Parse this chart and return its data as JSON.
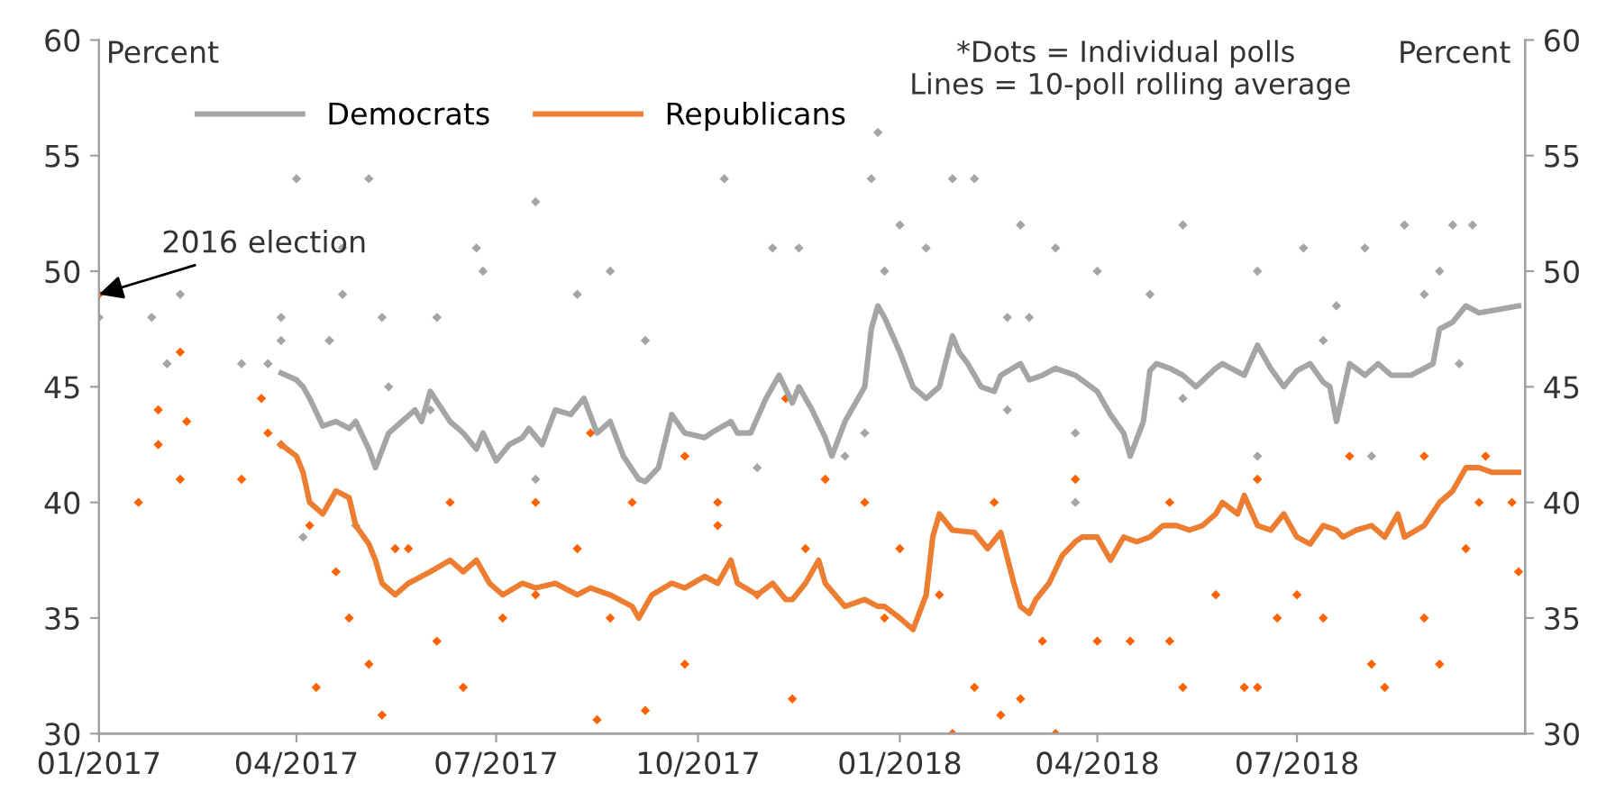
{
  "chart_data": {
    "type": "line",
    "ylabel": "Percent",
    "y2label": "Percent",
    "annotations": [
      "*Dots = Individual polls\n Lines = 10-poll rolling average",
      {
        "text": "2016 election",
        "x": "2017-01-01",
        "y": 49
      }
    ],
    "xlim": [
      "2017-01-01",
      "2018-10-13"
    ],
    "xticks": [
      {
        "value": "2017-01-01",
        "label": "01/2017"
      },
      {
        "value": "2017-04-01",
        "label": "04/2017"
      },
      {
        "value": "2017-07-01",
        "label": "07/2017"
      },
      {
        "value": "2017-10-01",
        "label": "10/2017"
      },
      {
        "value": "2018-01-01",
        "label": "01/2018"
      },
      {
        "value": "2018-04-01",
        "label": "04/2018"
      },
      {
        "value": "2018-07-01",
        "label": "07/2018"
      }
    ],
    "ylim": [
      30,
      60
    ],
    "yticks": [
      30,
      35,
      40,
      45,
      50,
      55,
      60
    ],
    "y2lim": [
      30,
      60
    ],
    "y2ticks": [
      30,
      35,
      40,
      45,
      50,
      55,
      60
    ],
    "legend": "top left",
    "line_style": "solid",
    "series": [
      {
        "name": "Democrats",
        "color": "#a5a5a5",
        "x": [
          "2017-03-25",
          "2017-04-01",
          "2017-04-04",
          "2017-04-07",
          "2017-04-13",
          "2017-04-19",
          "2017-04-25",
          "2017-04-28",
          "2017-05-04",
          "2017-05-07",
          "2017-05-13",
          "2017-05-19",
          "2017-05-25",
          "2017-05-28",
          "2017-06-01",
          "2017-06-10",
          "2017-06-16",
          "2017-06-22",
          "2017-06-25",
          "2017-07-01",
          "2017-07-07",
          "2017-07-13",
          "2017-07-16",
          "2017-07-22",
          "2017-07-28",
          "2017-08-04",
          "2017-08-10",
          "2017-08-16",
          "2017-08-22",
          "2017-08-28",
          "2017-09-04",
          "2017-09-07",
          "2017-09-13",
          "2017-09-19",
          "2017-09-25",
          "2017-10-04",
          "2017-10-07",
          "2017-10-16",
          "2017-10-19",
          "2017-10-25",
          "2017-11-01",
          "2017-11-07",
          "2017-11-13",
          "2017-11-16",
          "2017-11-22",
          "2017-11-28",
          "2017-12-01",
          "2017-12-07",
          "2017-12-13",
          "2017-12-16",
          "2017-12-19",
          "2017-12-22",
          "2017-12-25",
          "2018-01-01",
          "2018-01-07",
          "2018-01-13",
          "2018-01-19",
          "2018-01-25",
          "2018-01-28",
          "2018-02-01",
          "2018-02-07",
          "2018-02-13",
          "2018-02-16",
          "2018-02-25",
          "2018-03-01",
          "2018-03-07",
          "2018-03-13",
          "2018-03-22",
          "2018-04-01",
          "2018-04-07",
          "2018-04-13",
          "2018-04-16",
          "2018-04-22",
          "2018-04-25",
          "2018-04-28",
          "2018-05-04",
          "2018-05-10",
          "2018-05-16",
          "2018-05-25",
          "2018-05-28",
          "2018-06-07",
          "2018-06-13",
          "2018-06-19",
          "2018-06-25",
          "2018-07-01",
          "2018-07-07",
          "2018-07-13",
          "2018-07-16",
          "2018-07-19",
          "2018-07-25",
          "2018-08-01",
          "2018-08-07",
          "2018-08-13",
          "2018-08-22",
          "2018-09-01",
          "2018-09-04",
          "2018-09-10",
          "2018-09-16",
          "2018-09-22",
          "2018-09-28",
          "2018-10-10"
        ],
        "values": [
          45.6,
          45.3,
          45.0,
          44.5,
          43.3,
          43.5,
          43.2,
          43.5,
          42.3,
          41.5,
          43.0,
          43.5,
          44.0,
          43.5,
          44.8,
          43.5,
          43.0,
          42.3,
          43.0,
          41.8,
          42.5,
          42.8,
          43.2,
          42.5,
          44.0,
          43.8,
          44.5,
          43.0,
          43.5,
          42.0,
          41.0,
          40.9,
          41.5,
          43.8,
          43.0,
          42.8,
          43.0,
          43.5,
          43.0,
          43.0,
          44.5,
          45.5,
          44.3,
          45.0,
          44.0,
          42.8,
          42.0,
          43.5,
          44.5,
          45.0,
          47.5,
          48.5,
          48.0,
          46.5,
          45.0,
          44.5,
          45.0,
          47.2,
          46.5,
          46.0,
          45.0,
          44.8,
          45.5,
          46.0,
          45.3,
          45.5,
          45.8,
          45.5,
          44.8,
          43.8,
          43.0,
          42.0,
          43.5,
          45.7,
          46.0,
          45.8,
          45.5,
          45.0,
          45.8,
          46.0,
          45.5,
          46.8,
          45.8,
          45.0,
          45.7,
          46.0,
          45.2,
          45.0,
          43.5,
          46.0,
          45.5,
          46.0,
          45.5,
          45.5,
          46.0,
          47.5,
          47.8,
          48.5,
          48.2,
          48.3,
          48.5
        ]
      },
      {
        "name": "Republicans",
        "color": "#ed7d31",
        "x": [
          "2017-03-25",
          "2017-04-01",
          "2017-04-04",
          "2017-04-07",
          "2017-04-13",
          "2017-04-19",
          "2017-04-25",
          "2017-04-28",
          "2017-05-04",
          "2017-05-07",
          "2017-05-10",
          "2017-05-16",
          "2017-05-22",
          "2017-06-01",
          "2017-06-10",
          "2017-06-16",
          "2017-06-22",
          "2017-06-28",
          "2017-07-04",
          "2017-07-13",
          "2017-07-19",
          "2017-07-28",
          "2017-08-07",
          "2017-08-13",
          "2017-08-22",
          "2017-09-01",
          "2017-09-04",
          "2017-09-10",
          "2017-09-19",
          "2017-09-25",
          "2017-10-04",
          "2017-10-10",
          "2017-10-16",
          "2017-10-19",
          "2017-10-28",
          "2017-11-04",
          "2017-11-10",
          "2017-11-13",
          "2017-11-19",
          "2017-11-25",
          "2017-11-28",
          "2017-12-07",
          "2017-12-16",
          "2017-12-22",
          "2017-12-25",
          "2018-01-01",
          "2018-01-07",
          "2018-01-13",
          "2018-01-16",
          "2018-01-19",
          "2018-01-25",
          "2018-02-04",
          "2018-02-10",
          "2018-02-16",
          "2018-02-22",
          "2018-02-25",
          "2018-03-01",
          "2018-03-04",
          "2018-03-10",
          "2018-03-16",
          "2018-03-22",
          "2018-03-25",
          "2018-04-01",
          "2018-04-07",
          "2018-04-13",
          "2018-04-19",
          "2018-04-25",
          "2018-05-01",
          "2018-05-07",
          "2018-05-13",
          "2018-05-19",
          "2018-05-25",
          "2018-05-28",
          "2018-06-04",
          "2018-06-07",
          "2018-06-13",
          "2018-06-19",
          "2018-06-25",
          "2018-07-01",
          "2018-07-07",
          "2018-07-13",
          "2018-07-19",
          "2018-07-22",
          "2018-07-28",
          "2018-08-04",
          "2018-08-10",
          "2018-08-16",
          "2018-08-19",
          "2018-08-28",
          "2018-09-04",
          "2018-09-10",
          "2018-09-16",
          "2018-09-22",
          "2018-09-28",
          "2018-10-10"
        ],
        "values": [
          42.5,
          42.0,
          41.3,
          40.0,
          39.5,
          40.5,
          40.2,
          39.0,
          38.2,
          37.5,
          36.5,
          36.0,
          36.5,
          37.0,
          37.5,
          37.0,
          37.5,
          36.5,
          36.0,
          36.5,
          36.3,
          36.5,
          36.0,
          36.3,
          36.0,
          35.5,
          35.0,
          36.0,
          36.5,
          36.3,
          36.8,
          36.5,
          37.5,
          36.5,
          36.0,
          36.5,
          35.8,
          35.8,
          36.5,
          37.5,
          36.5,
          35.5,
          35.8,
          35.5,
          35.5,
          35.0,
          34.5,
          36.0,
          38.5,
          39.5,
          38.8,
          38.7,
          38.0,
          38.7,
          36.5,
          35.5,
          35.2,
          35.8,
          36.5,
          37.7,
          38.3,
          38.5,
          38.5,
          37.5,
          38.5,
          38.3,
          38.5,
          39.0,
          39.0,
          38.8,
          39.0,
          39.5,
          40.0,
          39.5,
          40.3,
          39.0,
          38.8,
          39.5,
          38.5,
          38.2,
          39.0,
          38.8,
          38.5,
          38.8,
          39.0,
          38.5,
          39.5,
          38.5,
          39.0,
          40.0,
          40.5,
          41.5,
          41.5,
          41.3,
          41.3
        ]
      },
      {
        "type": "scatter",
        "marker": "diamond",
        "color": "#a5a5a5",
        "x": [
          "2017-01-01",
          "2017-01-25",
          "2017-02-07",
          "2017-02-01",
          "2017-03-07",
          "2017-03-19",
          "2017-03-25",
          "2017-03-25",
          "2017-04-01",
          "2017-05-04",
          "2017-04-16",
          "2017-04-16",
          "2017-04-22",
          "2017-04-22",
          "2017-05-10",
          "2017-05-13",
          "2017-06-22",
          "2017-06-25",
          "2017-07-19",
          "2017-08-07",
          "2017-08-22",
          "2017-10-13",
          "2017-11-04",
          "2017-11-16",
          "2017-12-22",
          "2017-12-19",
          "2017-12-25",
          "2018-01-01",
          "2018-01-13",
          "2018-01-25",
          "2018-02-04",
          "2018-02-25",
          "2018-03-01",
          "2018-03-13",
          "2018-04-01",
          "2018-05-10",
          "2018-06-13",
          "2018-07-04",
          "2018-08-01",
          "2018-08-19",
          "2018-09-10",
          "2018-09-19",
          "2018-09-04",
          "2018-08-28",
          "2018-09-13",
          "2018-07-19",
          "2018-07-13",
          "2018-05-10",
          "2018-03-22",
          "2018-02-19",
          "2017-12-07",
          "2017-10-28",
          "2017-07-19",
          "2017-04-28",
          "2017-04-04",
          "2018-03-22",
          "2018-06-13",
          "2018-08-04",
          "2018-04-25",
          "2018-02-19",
          "2017-12-16",
          "2017-09-07",
          "2017-06-01",
          "2017-06-04"
        ],
        "values": [
          48,
          48,
          49,
          46,
          46,
          46,
          48,
          47,
          54,
          54,
          47,
          47,
          49,
          51,
          48,
          45,
          51,
          50,
          53,
          49,
          50,
          54,
          51,
          51,
          56,
          54,
          50,
          52,
          51,
          54,
          54,
          52,
          48,
          51,
          50,
          52,
          50,
          51,
          51,
          52,
          52,
          52,
          50,
          49,
          46,
          48.5,
          47,
          44.5,
          43,
          44,
          42,
          41.5,
          41,
          39,
          38.5,
          40,
          42,
          42,
          49,
          48,
          43,
          47,
          44,
          48
        ]
      },
      {
        "type": "scatter",
        "marker": "diamond",
        "color": "#ff6200",
        "x": [
          "2017-01-01",
          "2017-01-19",
          "2017-01-28",
          "2017-01-28",
          "2017-02-07",
          "2017-02-07",
          "2017-02-10",
          "2017-03-07",
          "2017-03-19",
          "2017-03-16",
          "2017-03-25",
          "2017-04-10",
          "2017-04-07",
          "2017-04-19",
          "2017-04-25",
          "2017-05-04",
          "2017-05-10",
          "2017-05-16",
          "2017-05-22",
          "2017-06-04",
          "2017-06-16",
          "2017-07-04",
          "2017-07-19",
          "2017-08-07",
          "2017-08-16",
          "2017-08-22",
          "2017-09-07",
          "2017-09-25",
          "2017-10-10",
          "2017-10-28",
          "2017-11-13",
          "2017-11-19",
          "2017-11-28",
          "2017-12-25",
          "2018-01-01",
          "2018-01-19",
          "2018-01-25",
          "2018-02-04",
          "2018-02-16",
          "2018-02-25",
          "2018-03-07",
          "2018-03-13",
          "2018-04-01",
          "2018-04-16",
          "2018-05-04",
          "2018-05-10",
          "2018-05-25",
          "2018-06-07",
          "2018-06-13",
          "2018-06-22",
          "2018-07-01",
          "2018-07-13",
          "2018-08-04",
          "2018-08-10",
          "2018-08-28",
          "2018-09-04",
          "2018-09-16",
          "2018-09-22",
          "2018-10-07",
          "2018-10-10",
          "2018-09-25",
          "2018-08-28",
          "2018-07-25",
          "2018-06-13",
          "2018-05-04",
          "2018-03-22",
          "2018-02-13",
          "2017-12-16",
          "2017-10-10",
          "2017-09-01",
          "2017-07-19",
          "2017-06-10",
          "2017-09-25",
          "2017-11-10",
          "2017-08-13"
        ],
        "values": [
          49,
          40,
          44,
          42.5,
          46.5,
          41,
          43.5,
          41,
          43,
          44.5,
          42.5,
          32,
          39,
          37,
          35,
          33,
          30.8,
          38,
          38,
          34,
          32,
          35,
          36,
          38,
          30.6,
          35,
          31,
          33,
          39,
          36,
          31.5,
          38,
          41,
          35,
          38,
          36,
          30,
          32,
          30.8,
          31.5,
          34,
          30,
          34,
          34,
          34,
          32,
          36,
          32,
          32,
          35,
          36,
          35,
          33,
          32,
          35,
          33,
          38,
          40,
          40,
          37,
          42,
          42,
          42,
          41,
          40,
          41,
          40,
          40,
          40,
          40,
          40,
          40,
          42,
          44.5,
          43
        ]
      }
    ]
  }
}
